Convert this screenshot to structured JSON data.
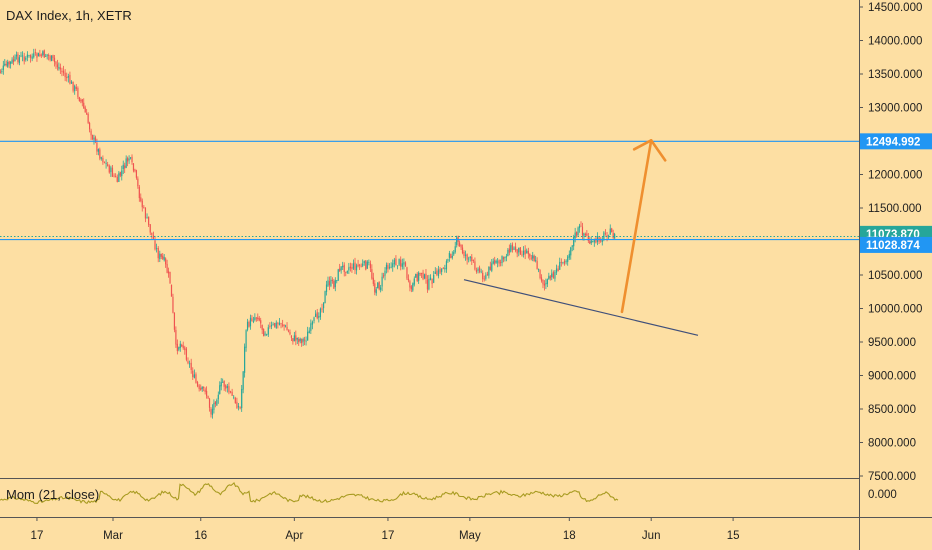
{
  "chart_data": {
    "type": "candlestick",
    "title": "DAX Index, 1h, XETR",
    "y_axis": {
      "min": 7500,
      "max": 14500,
      "ticks": [
        "14500.000",
        "14000.000",
        "13500.000",
        "13000.000",
        "12500.000",
        "12000.000",
        "11500.000",
        "11000.000",
        "10500.000",
        "10000.000",
        "9500.000",
        "9000.000",
        "8500.000",
        "8000.000",
        "7500.000"
      ]
    },
    "x_axis": {
      "labels": [
        "17",
        "Mar",
        "16",
        "Apr",
        "17",
        "May",
        "18",
        "Jun",
        "15"
      ]
    },
    "price_path": [
      {
        "x": "Feb 10",
        "y": 13470
      },
      {
        "x": "Feb 12",
        "y": 13620
      },
      {
        "x": "Feb 14",
        "y": 13740
      },
      {
        "x": "Feb 17",
        "y": 13760
      },
      {
        "x": "Feb 19",
        "y": 13790
      },
      {
        "x": "Feb 21",
        "y": 13600
      },
      {
        "x": "Feb 24",
        "y": 13250
      },
      {
        "x": "Feb 25",
        "y": 13050
      },
      {
        "x": "Feb 27",
        "y": 12500
      },
      {
        "x": "Feb 28",
        "y": 12300
      },
      {
        "x": "Mar 2",
        "y": 11900
      },
      {
        "x": "Mar 3",
        "y": 12100
      },
      {
        "x": "Mar 4",
        "y": 12250
      },
      {
        "x": "Mar 5",
        "y": 12000
      },
      {
        "x": "Mar 6",
        "y": 11600
      },
      {
        "x": "Mar 9",
        "y": 10800
      },
      {
        "x": "Mar 10",
        "y": 10700
      },
      {
        "x": "Mar 11",
        "y": 10400
      },
      {
        "x": "Mar 12",
        "y": 9400
      },
      {
        "x": "Mar 13",
        "y": 9500
      },
      {
        "x": "Mar 16",
        "y": 8750
      },
      {
        "x": "Mar 17",
        "y": 8800
      },
      {
        "x": "Mar 18",
        "y": 8450
      },
      {
        "x": "Mar 19",
        "y": 8700
      },
      {
        "x": "Mar 20",
        "y": 8900
      },
      {
        "x": "Mar 23",
        "y": 8500
      },
      {
        "x": "Mar 24",
        "y": 9700
      },
      {
        "x": "Mar 25",
        "y": 9850
      },
      {
        "x": "Mar 26",
        "y": 9900
      },
      {
        "x": "Mar 27",
        "y": 9650
      },
      {
        "x": "Mar 30",
        "y": 9800
      },
      {
        "x": "Apr 1",
        "y": 9550
      },
      {
        "x": "Apr 2",
        "y": 9550
      },
      {
        "x": "Apr 3",
        "y": 9520
      },
      {
        "x": "Apr 6",
        "y": 10050
      },
      {
        "x": "Apr 7",
        "y": 10400
      },
      {
        "x": "Apr 8",
        "y": 10350
      },
      {
        "x": "Apr 9",
        "y": 10600
      },
      {
        "x": "Apr 14",
        "y": 10650
      },
      {
        "x": "Apr 15",
        "y": 10300
      },
      {
        "x": "Apr 16",
        "y": 10350
      },
      {
        "x": "Apr 17",
        "y": 10650
      },
      {
        "x": "Apr 20",
        "y": 10700
      },
      {
        "x": "Apr 21",
        "y": 10250
      },
      {
        "x": "Apr 22",
        "y": 10450
      },
      {
        "x": "Apr 23",
        "y": 10550
      },
      {
        "x": "Apr 24",
        "y": 10350
      },
      {
        "x": "Apr 27",
        "y": 10650
      },
      {
        "x": "Apr 28",
        "y": 10800
      },
      {
        "x": "Apr 29",
        "y": 11000
      },
      {
        "x": "Apr 30",
        "y": 10850
      },
      {
        "x": "May 4",
        "y": 10450
      },
      {
        "x": "May 5",
        "y": 10700
      },
      {
        "x": "May 6",
        "y": 10650
      },
      {
        "x": "May 7",
        "y": 10750
      },
      {
        "x": "May 8",
        "y": 10900
      },
      {
        "x": "May 11",
        "y": 10850
      },
      {
        "x": "May 12",
        "y": 10800
      },
      {
        "x": "May 13",
        "y": 10550
      },
      {
        "x": "May 14",
        "y": 10350
      },
      {
        "x": "May 15",
        "y": 10450
      },
      {
        "x": "May 18",
        "y": 10800
      },
      {
        "x": "May 19",
        "y": 11050
      },
      {
        "x": "May 20",
        "y": 11200
      },
      {
        "x": "May 21",
        "y": 11100
      },
      {
        "x": "May 22",
        "y": 10950
      },
      {
        "x": "May 25",
        "y": 11150
      },
      {
        "x": "May 26",
        "y": 11073.87
      }
    ],
    "horizontal_lines": [
      {
        "value": 12494.992,
        "label": "12494.992",
        "color": "#2196f3"
      },
      {
        "value": 11028.874,
        "label": "11028.874",
        "color": "#2196f3"
      }
    ],
    "current_price": {
      "value": 11073.87,
      "label": "11073.870",
      "color": "#26a69a"
    },
    "trend_line": {
      "from": {
        "x": "Apr 30",
        "y": 10430
      },
      "to": {
        "x": "Jun 9",
        "y": 9600
      },
      "color": "#3f4f7a"
    },
    "projection_arrow": {
      "from": {
        "x": "May 27",
        "y": 9950
      },
      "to": {
        "x": "Jun 1",
        "y": 12510
      },
      "color": "#ef8f2f"
    },
    "indicator": {
      "label": "Mom (21, close)",
      "tick": "0.000",
      "color": "#a89b21"
    },
    "colors": {
      "background": "#fddfa3",
      "up": "#26a69a",
      "down": "#ef5350",
      "axis_text": "#1e1e1e"
    }
  }
}
